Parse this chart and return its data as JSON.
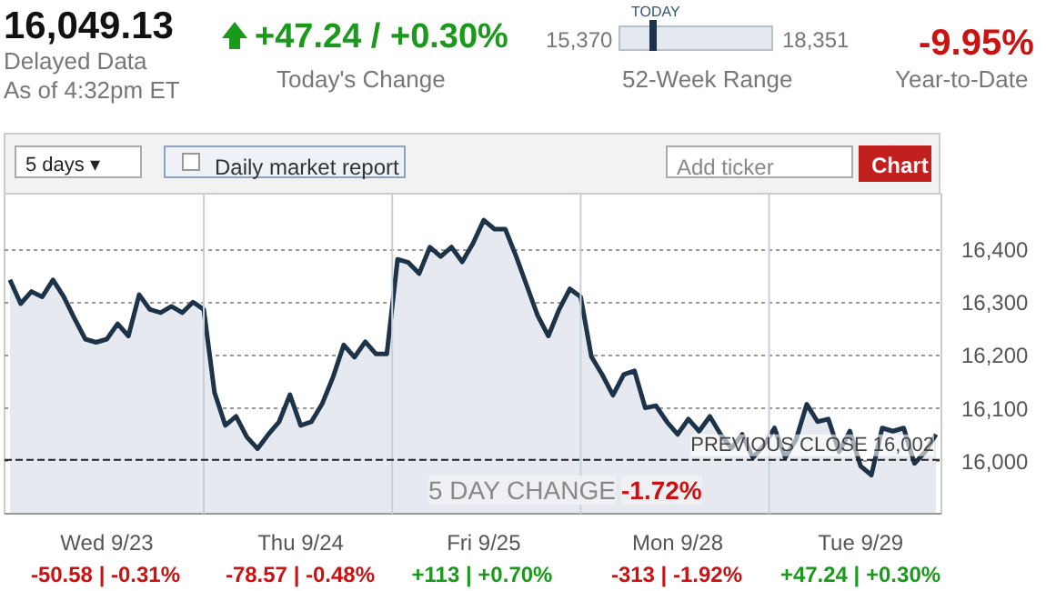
{
  "chart_data": {
    "type": "area",
    "title": "16,049.13",
    "annotations": [
      "Delayed Data",
      "As of 4:32pm ET",
      "+47.24 / +0.30%",
      "Today's Change",
      "15,370",
      "TODAY",
      "18,351",
      "52-Week Range",
      "-9.95%",
      "Year-to-Date",
      "5 days ▾",
      "Daily market report",
      "Add ticker",
      "Chart",
      "5 DAY CHANGE",
      "-1.72%",
      "-50.58 | -0.31%",
      "-78.57 | -0.48%",
      "+113 | +0.70%",
      "-313 | -1.92%",
      "+47.24 | +0.30%"
    ],
    "series": [
      {
        "color": "#1c3349",
        "values": [
          16342,
          16297,
          16320,
          16310,
          16342,
          16310,
          16269,
          16230,
          16224,
          16230,
          16259,
          16236,
          16314,
          16286,
          16280,
          16292,
          16280,
          16300,
          16286,
          16129,
          16067,
          16084,
          16045,
          16023,
          16050,
          16074,
          16125,
          16067,
          16074,
          16108,
          16158,
          16219,
          16196,
          16225,
          16202,
          16202,
          16381,
          16375,
          16354,
          16404,
          16386,
          16404,
          16376,
          16411,
          16455,
          16438,
          16438,
          16387,
          16331,
          16275,
          16236,
          16286,
          16325,
          16310,
          16197,
          16163,
          16124,
          16163,
          16170,
          16100,
          16104,
          16074,
          16050,
          16079,
          16056,
          16084,
          16050,
          16024,
          16050,
          16006,
          16029,
          16062,
          16006,
          16040,
          16107,
          16074,
          16079,
          16017,
          16056,
          15990,
          15973,
          16062,
          16056,
          16062,
          15995,
          16017,
          16050
        ]
      }
    ],
    "categories": [
      null,
      null,
      null,
      null,
      null,
      null,
      null,
      null,
      null,
      "Wed 9/23",
      null,
      null,
      null,
      null,
      null,
      null,
      null,
      null,
      null,
      null,
      null,
      null,
      null,
      null,
      null,
      null,
      null,
      "Thu 9/24",
      null,
      null,
      null,
      null,
      null,
      null,
      null,
      null,
      null,
      null,
      null,
      null,
      null,
      null,
      null,
      null,
      "Fri 9/25",
      null,
      null,
      null,
      null,
      null,
      null,
      null,
      null,
      null,
      null,
      null,
      null,
      null,
      null,
      null,
      null,
      null,
      "Mon 9/28",
      null,
      null,
      null,
      null,
      null,
      null,
      null,
      null,
      null,
      null,
      null,
      null,
      null,
      null,
      null,
      null,
      "Tue 9/29",
      null,
      null,
      null,
      null,
      null,
      null,
      null
    ],
    "ylim": [
      15900,
      16505
    ],
    "yticks": [
      {
        "value": 16000,
        "label": "16,000"
      },
      {
        "value": 16100,
        "label": "16,100"
      },
      {
        "value": 16200,
        "label": "16,200"
      },
      {
        "value": 16300,
        "label": "16,300"
      },
      {
        "value": 16400,
        "label": "16,400"
      }
    ],
    "grid": "y",
    "ref_lines": [
      {
        "axis": "y",
        "value": 16002,
        "label": "PREVIOUS CLOSE 16,002",
        "color": "#222222",
        "line_style": "dashed"
      }
    ]
  }
}
